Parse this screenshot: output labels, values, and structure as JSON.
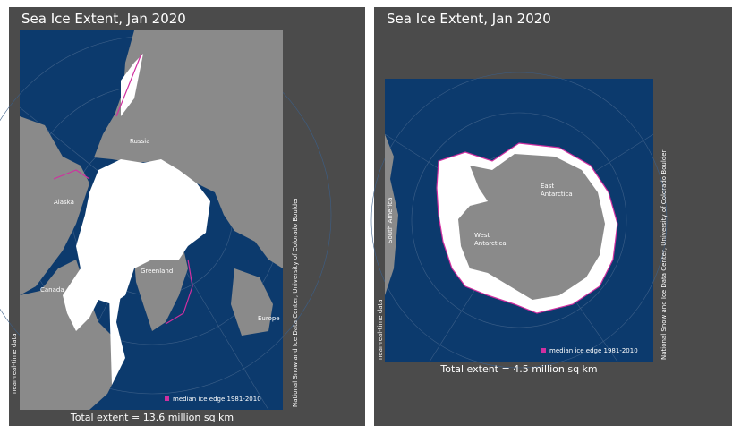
{
  "panels": [
    {
      "title": "Sea Ice Extent, Jan 2020",
      "labels": [
        "Russia",
        "Alaska",
        "Canada",
        "Greenland",
        "Europe"
      ],
      "legend": "median ice edge 1981-2010",
      "total": "Total extent = 13.6 million sq km",
      "side_left": "near-real-time data",
      "side_right": "National Snow and Ice Data Center, University of Colorado Boulder"
    },
    {
      "title": "Sea Ice Extent, Jan 2020",
      "labels": [
        "South America",
        "East",
        "Antarctica",
        "West",
        "Antarctica"
      ],
      "legend": "median ice edge 1981-2010",
      "total": "Total extent = 4.5 million sq km",
      "side_left": "near-real-time data",
      "side_right": "National Snow and Ice Data Center, University of Colorado Boulder"
    }
  ]
}
